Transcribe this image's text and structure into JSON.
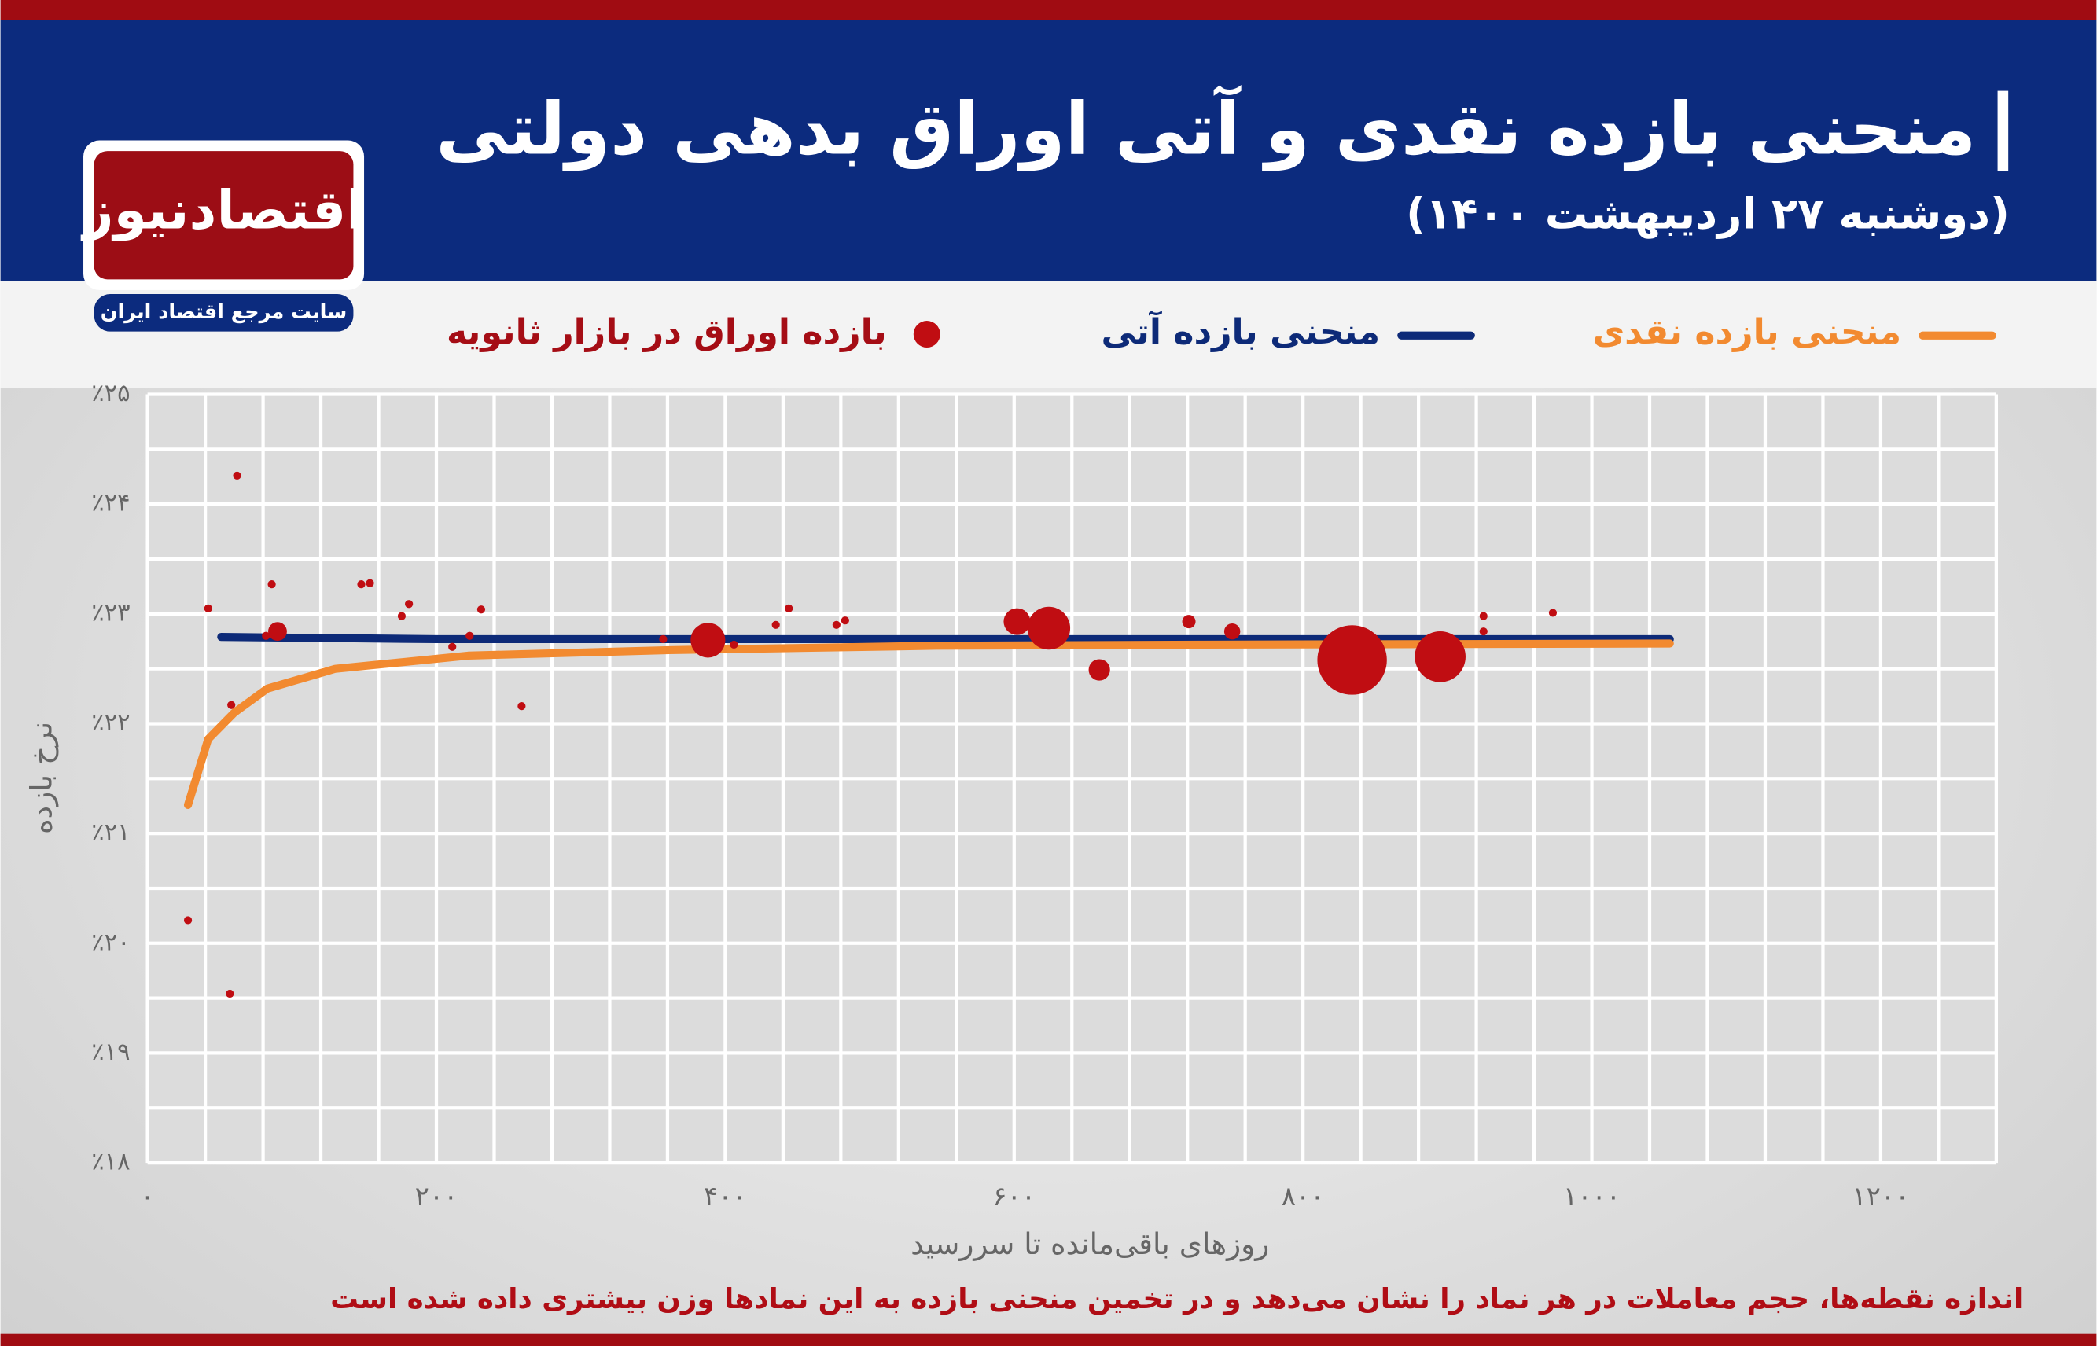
{
  "logo": {
    "name": "اقتصادنیوز",
    "tagline": "سایت مرجع اقتصاد ایران"
  },
  "chart_data": {
    "type": "line",
    "title": "منحنی بازده نقدی و آتی اوراق بدهی دولتی",
    "subtitle": "(دوشنبه ۲۷ اردیبهشت ۱۴۰۰)",
    "xlabel": "روزهای باقی‌مانده تا سررسید",
    "ylabel": "نرخ بازده",
    "note": "اندازه نقطه‌ها، حجم معاملات در هر نماد را نشان می‌دهد و در تخمین منحنی بازده به این نمادها وزن بیشتری داده شده است",
    "xlim": [
      0,
      1280
    ],
    "ylim": [
      18,
      25
    ],
    "xticks": [
      {
        "value": 0,
        "label": "۰"
      },
      {
        "value": 200,
        "label": "۲۰۰"
      },
      {
        "value": 400,
        "label": "۴۰۰"
      },
      {
        "value": 600,
        "label": "۶۰۰"
      },
      {
        "value": 800,
        "label": "۸۰۰"
      },
      {
        "value": 1000,
        "label": "۱۰۰۰"
      },
      {
        "value": 1200,
        "label": "۱۲۰۰"
      }
    ],
    "xminorticks": [
      40,
      80,
      120,
      160,
      240,
      280,
      320,
      360,
      440,
      480,
      520,
      560,
      640,
      680,
      720,
      760,
      840,
      880,
      920,
      960,
      1040,
      1080,
      1120,
      1160,
      1240,
      1280
    ],
    "yticks": [
      {
        "value": 18,
        "label": "٪۱۸"
      },
      {
        "value": 19,
        "label": "٪۱۹"
      },
      {
        "value": 20,
        "label": "٪۲۰"
      },
      {
        "value": 21,
        "label": "٪۲۱"
      },
      {
        "value": 22,
        "label": "٪۲۲"
      },
      {
        "value": 23,
        "label": "٪۲۳"
      },
      {
        "value": 24,
        "label": "٪۲۴"
      },
      {
        "value": 25,
        "label": "٪۲۵"
      }
    ],
    "yminorticks": [
      18.5,
      19.5,
      20.5,
      21.5,
      22.5,
      23.5,
      24.5
    ],
    "grid": true,
    "series": [
      {
        "name": "منحنی بازده نقدی",
        "type": "line",
        "color": "#f28a30",
        "x": [
          28,
          42,
          60,
          83,
          130,
          222,
          361,
          546,
          731,
          1054
        ],
        "values": [
          21.26,
          21.86,
          22.1,
          22.32,
          22.5,
          22.62,
          22.67,
          22.71,
          22.72,
          22.73
        ]
      },
      {
        "name": "منحنی بازده آتی",
        "type": "line",
        "color": "#0d2a78",
        "x": [
          51,
          200,
          400,
          600,
          800,
          1054
        ],
        "values": [
          22.79,
          22.77,
          22.77,
          22.77,
          22.77,
          22.77
        ]
      },
      {
        "name": "بازده اوراق در بازار ثانویه",
        "type": "scatter",
        "color": "#c00d12",
        "x": [
          28,
          42,
          57,
          58,
          62,
          86,
          90,
          82,
          148,
          154,
          176,
          181,
          211,
          223,
          231,
          259,
          357,
          388,
          406,
          435,
          444,
          477,
          483,
          602,
          624,
          659,
          721,
          751,
          834,
          895,
          925,
          925,
          973
        ],
        "values": [
          20.21,
          23.05,
          19.54,
          22.17,
          24.26,
          23.27,
          22.84,
          22.8,
          23.27,
          23.28,
          22.98,
          23.09,
          22.7,
          22.8,
          23.04,
          22.16,
          22.77,
          22.76,
          22.72,
          22.9,
          23.05,
          22.9,
          22.94,
          22.93,
          22.87,
          22.49,
          22.93,
          22.84,
          22.58,
          22.61,
          22.98,
          22.84,
          23.01
        ],
        "sizes": [
          3,
          3,
          3,
          3,
          3,
          3,
          7,
          3,
          3,
          3,
          3,
          3,
          3,
          3,
          3,
          3,
          3,
          13,
          3,
          3,
          3,
          3,
          3,
          10,
          16,
          8,
          5,
          6,
          26,
          19,
          3,
          3,
          3
        ]
      }
    ]
  }
}
